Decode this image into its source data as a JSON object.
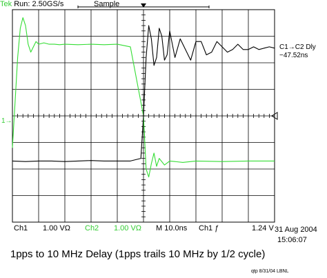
{
  "status": {
    "brand": "Tek",
    "run": "Run: 2.50GS/s",
    "mode": "Sample"
  },
  "measurement": {
    "label": "C1→C2 Dly",
    "value": "−47.52ns"
  },
  "settings": {
    "ch1_label": "Ch1",
    "ch1_scale": "1.00 VΩ",
    "ch2_label": "Ch2",
    "ch2_scale": "1.00 VΩ",
    "timebase": "M 10.0ns",
    "trigger": "Ch1 ƒ",
    "trigger_level": "1.24 V"
  },
  "timestamp": {
    "date": "31 Aug 2004",
    "time": "15:06:07"
  },
  "caption": "1pps to 10 MHz Delay (1pps trails 10 MHz by 1/2 cycle)",
  "credit": "qtp 8/31/04 LBNL",
  "marker": "1→",
  "colors": {
    "ch1": "#000000",
    "ch2": "#33dd33",
    "grid": "#000000"
  },
  "chart_data": {
    "type": "line",
    "grid": true,
    "x_divisions": 10,
    "y_divisions": 8,
    "x_unit": "ns",
    "x_per_div": 10,
    "xlim": [
      -50,
      50
    ],
    "ylim": [
      -4,
      4
    ],
    "series": [
      {
        "id": "ch2",
        "x": [
          -50,
          -49,
          -48,
          -47,
          -46,
          -45,
          -44,
          -43,
          -42,
          -41,
          -40,
          -38,
          -36,
          -34,
          -32,
          -30,
          -25,
          -20,
          -15,
          -10,
          -5,
          0,
          1,
          2,
          3,
          4,
          5,
          6,
          8,
          10,
          15,
          20,
          30,
          40,
          50
        ],
        "y": [
          -1.2,
          0.5,
          2.2,
          3.3,
          3.7,
          3.4,
          2.7,
          2.4,
          2.6,
          2.8,
          2.7,
          2.75,
          2.7,
          2.7,
          2.68,
          2.7,
          2.68,
          2.7,
          2.68,
          2.7,
          2.6,
          0.0,
          -2.0,
          -2.3,
          -1.8,
          -1.4,
          -1.9,
          -1.6,
          -1.85,
          -1.7,
          -1.75,
          -1.7,
          -1.72,
          -1.7,
          -1.7
        ]
      },
      {
        "id": "ch1",
        "x": [
          -50,
          -45,
          -40,
          -35,
          -30,
          -25,
          -20,
          -15,
          -10,
          -5,
          -1,
          0,
          1,
          2,
          3,
          4,
          5,
          6,
          7,
          8,
          9,
          10,
          12,
          14,
          16,
          18,
          20,
          22,
          24,
          26,
          28,
          30,
          32,
          34,
          36,
          38,
          40,
          42,
          44,
          46,
          48,
          50
        ],
        "y": [
          -1.7,
          -1.72,
          -1.7,
          -1.7,
          -1.72,
          -1.7,
          -1.68,
          -1.7,
          -1.7,
          -1.7,
          -1.6,
          0.0,
          2.2,
          3.4,
          2.9,
          1.9,
          2.2,
          3.3,
          3.0,
          2.1,
          2.3,
          3.2,
          2.2,
          2.9,
          2.5,
          2.1,
          2.8,
          2.8,
          2.3,
          2.4,
          2.8,
          2.6,
          2.4,
          2.5,
          2.7,
          2.5,
          2.5,
          2.6,
          2.5,
          2.55,
          2.6,
          2.55
        ]
      }
    ]
  }
}
